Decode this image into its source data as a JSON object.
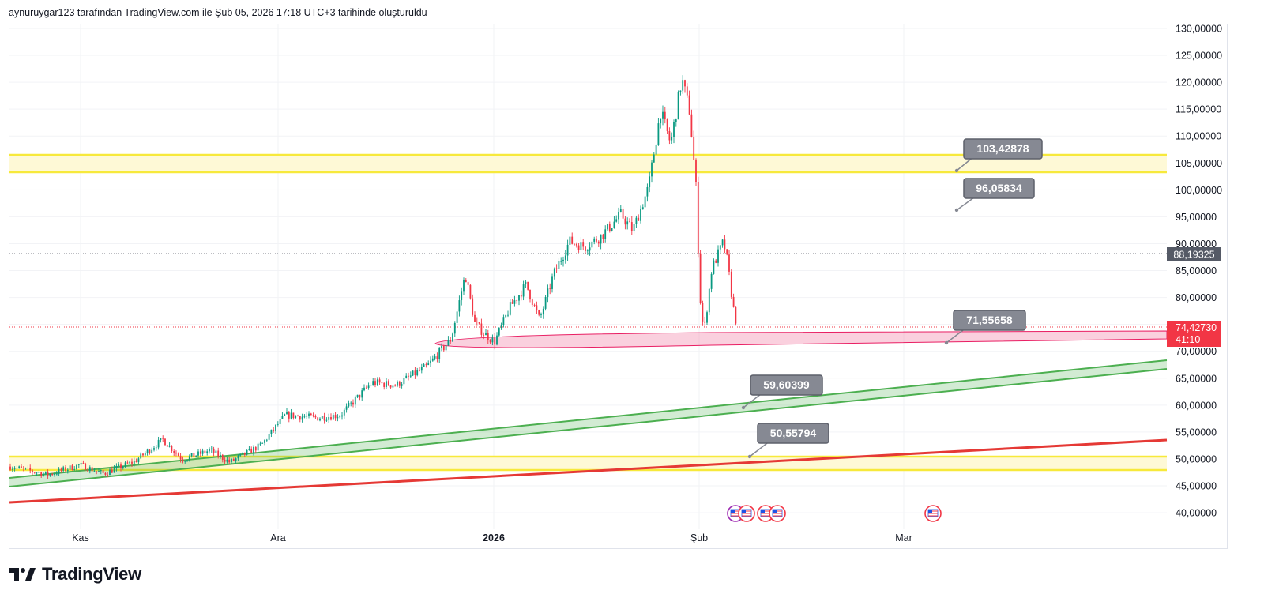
{
  "header": {
    "caption": "aynuruygar123 tarafından TradingView.com ile Şub 05, 2026 17:18 UTC+3 tarihinde oluşturuldu"
  },
  "brand": {
    "name": "TradingView"
  },
  "colors": {
    "up": "#089981",
    "down": "#f23645",
    "yellow_zone": "#f7e93b",
    "green_channel": "#4caf50",
    "red_trend": "#e53935",
    "pink_zone": "#e91e63",
    "callout": "#868993"
  },
  "axes": {
    "y_ticks": [
      "130,00000",
      "125,00000",
      "120,00000",
      "115,00000",
      "110,00000",
      "105,00000",
      "100,00000",
      "95,00000",
      "90,00000",
      "85,00000",
      "80,00000",
      "75,00000",
      "70,00000",
      "65,00000",
      "60,00000",
      "55,00000",
      "50,00000",
      "45,00000",
      "40,00000"
    ],
    "x_ticks": [
      {
        "label": "Kas",
        "bold": false
      },
      {
        "label": "Ara",
        "bold": false
      },
      {
        "label": "2026",
        "bold": true
      },
      {
        "label": "Şub",
        "bold": false
      },
      {
        "label": "Mar",
        "bold": false
      }
    ]
  },
  "price_labels": {
    "last_close": "88,19325",
    "current": "74,42730",
    "countdown": "41:10"
  },
  "callouts": [
    {
      "name": "callout-103",
      "text": "103,42878"
    },
    {
      "name": "callout-96",
      "text": "96,05834"
    },
    {
      "name": "callout-71",
      "text": "71,55658"
    },
    {
      "name": "callout-59",
      "text": "59,60399"
    },
    {
      "name": "callout-50",
      "text": "50,55794"
    }
  ],
  "events": [
    "economic-event-icon",
    "economic-event-icon",
    "economic-event-icon",
    "economic-event-icon",
    "economic-event-icon"
  ]
}
